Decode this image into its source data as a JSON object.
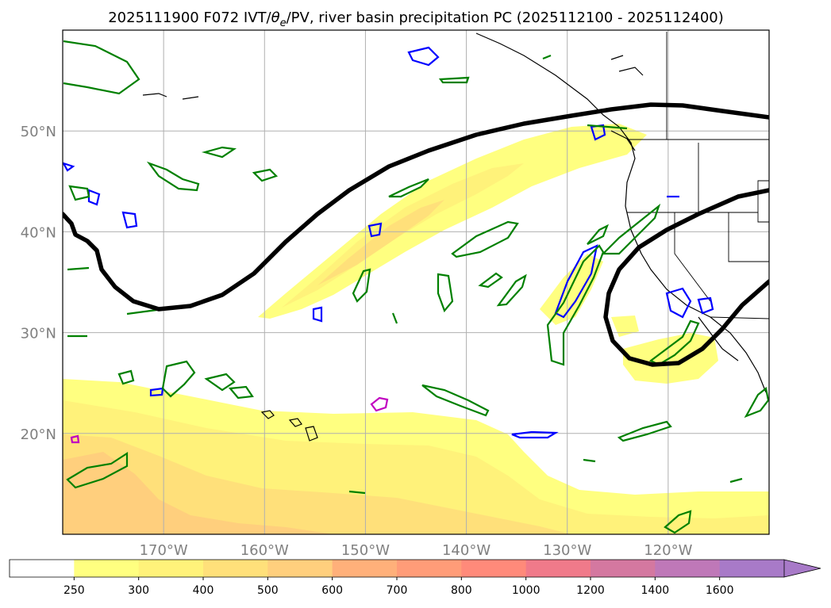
{
  "figure": {
    "title_main": "2025111900 F072 IVT/",
    "title_theta": "θ",
    "title_theta_sub": "e",
    "title_rest": "/PV, river basin precipitation PC (2025112100 - 2025112400)"
  },
  "map": {
    "projection": "PlateCarree",
    "lon_labels": [
      "170°W",
      "160°W",
      "150°W",
      "140°W",
      "130°W",
      "120°W"
    ],
    "lon_values": [
      -170,
      -160,
      -150,
      -140,
      -130,
      -120
    ],
    "lat_labels": [
      "50°N",
      "40°N",
      "30°N",
      "20°N"
    ],
    "lat_values": [
      50,
      40,
      30,
      20
    ],
    "extent": {
      "lon_min": -180,
      "lon_max": -110,
      "lat_min": 10,
      "lat_max": 60
    },
    "gridlines": true,
    "contour_colors": {
      "black": "#000000",
      "green": "#008000",
      "blue": "#0000ff",
      "magenta": "#c000c0"
    }
  },
  "colorbar": {
    "labels": [
      "250",
      "300",
      "400",
      "500",
      "600",
      "700",
      "800",
      "1000",
      "1200",
      "1400",
      "1600"
    ],
    "colors": [
      "#ffffff",
      "#ffff80",
      "#fff27a",
      "#ffe07a",
      "#ffcf7d",
      "#ffb07a",
      "#ff9c78",
      "#ff8a7a",
      "#f07a8a",
      "#d478a0",
      "#bf78b8",
      "#a87ac8"
    ],
    "extend": "max"
  }
}
